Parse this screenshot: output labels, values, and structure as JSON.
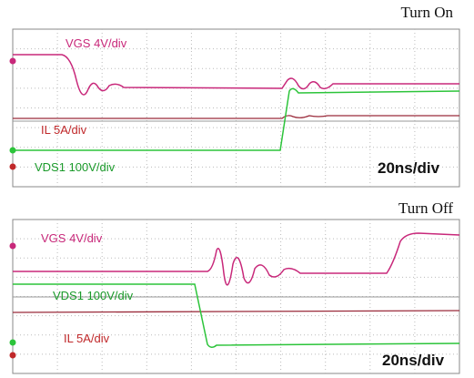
{
  "panels": [
    {
      "title": "Turn On",
      "labels": {
        "vgs": "VGS 4V/div",
        "il": "IL 5A/div",
        "vds": "VDS1 100V/div",
        "time": "20ns/div"
      }
    },
    {
      "title": "Turn Off",
      "labels": {
        "vgs": "VGS 4V/div",
        "vds": "VDS1 100V/div",
        "il": "IL 5A/div",
        "time": "20ns/div"
      }
    }
  ]
}
